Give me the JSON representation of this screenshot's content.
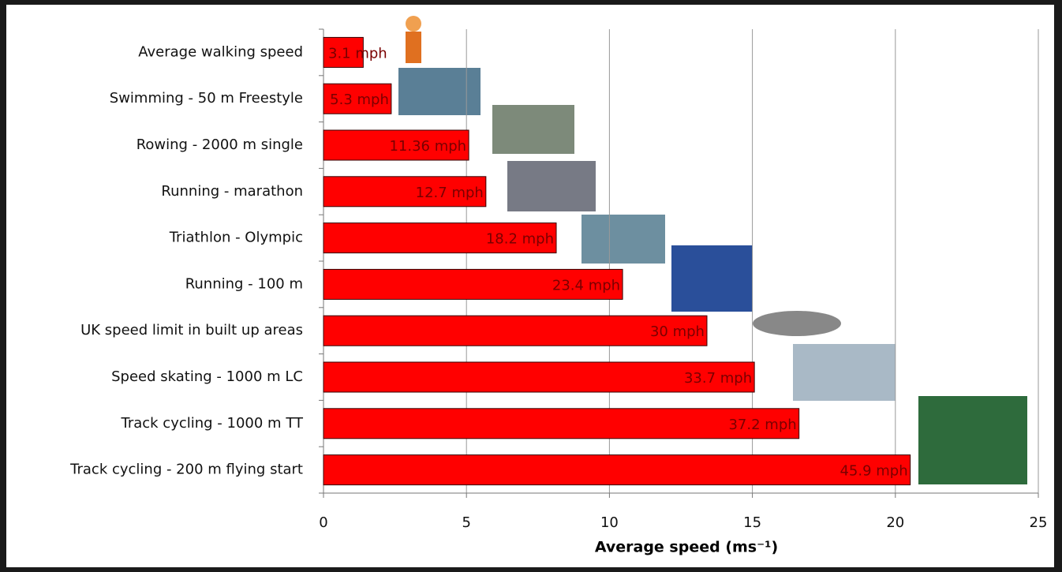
{
  "chart_data": {
    "type": "bar",
    "orientation": "horizontal",
    "x_label": "Average speed (ms⁻¹)",
    "categories": [
      "Average walking speed",
      "Swimming - 50 m Freestyle",
      "Rowing - 2000 m single",
      "Running - marathon",
      "Triathlon - Olympic",
      "Running - 100 m",
      "UK speed limit in built up areas",
      "Speed skating - 1000 m LC",
      "Track cycling - 1000 m TT",
      "Track cycling - 200 m flying start"
    ],
    "values": [
      1.39,
      2.37,
      5.08,
      5.68,
      8.14,
      10.46,
      13.41,
      15.07,
      16.63,
      20.52
    ],
    "value_labels": [
      "3.1 mph",
      "5.3 mph",
      "11.36 mph",
      "12.7 mph",
      "18.2 mph",
      "23.4 mph",
      "30 mph",
      "33.7 mph",
      "37.2 mph",
      "45.9 mph"
    ],
    "color": "#ff0000",
    "xlim": [
      0,
      25
    ],
    "xticks": [
      0,
      5,
      10,
      15,
      20,
      25
    ],
    "grid": true
  }
}
